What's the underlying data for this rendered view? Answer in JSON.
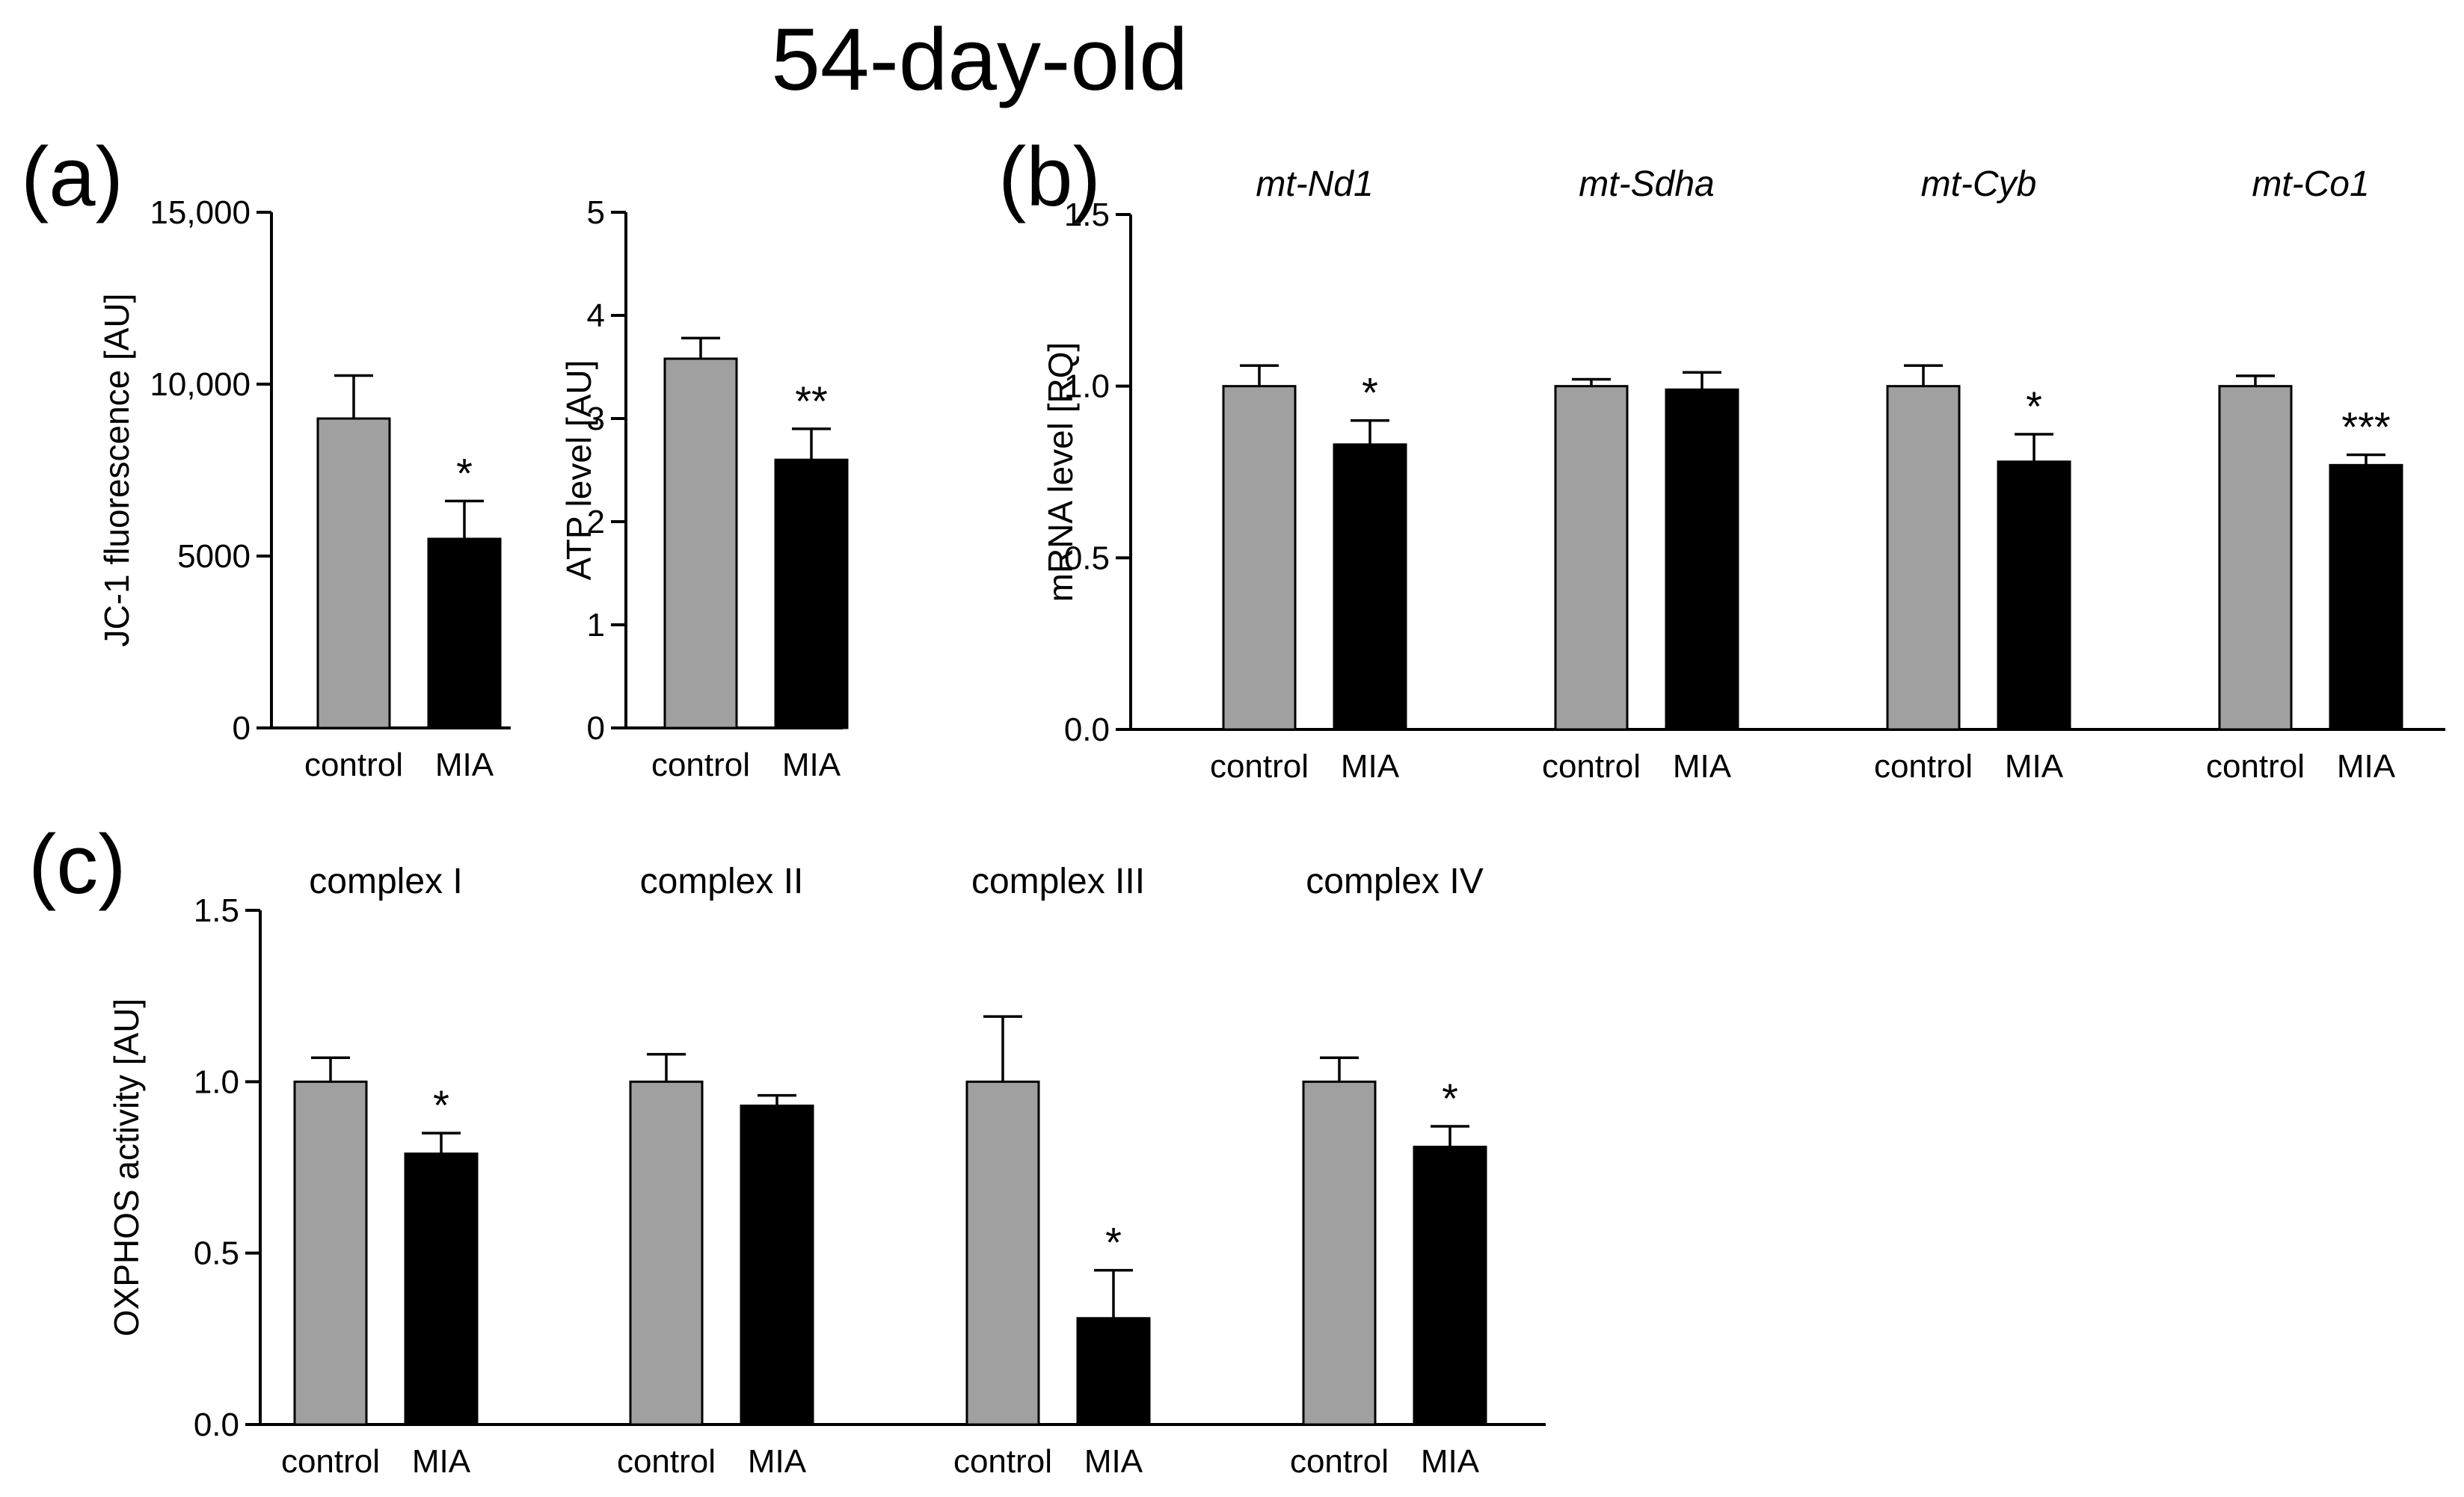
{
  "figure": {
    "title": "54-day-old",
    "panel_labels": [
      "(a)",
      "(b)",
      "(c)"
    ]
  },
  "colors": {
    "control": "#a0a0a0",
    "mia": "#000000",
    "axis": "#000000"
  },
  "chart_data": [
    {
      "id": "a1",
      "type": "bar",
      "ylabel": "JC-1 fluorescence [AU]",
      "ylim": [
        0,
        15000
      ],
      "yticks": [
        0,
        5000,
        10000,
        15000
      ],
      "ytick_labels": [
        "0",
        "5000",
        "10,000",
        "15,000"
      ],
      "groups": [
        {
          "subtitle": "",
          "bars": [
            {
              "label": "control",
              "value": 9000,
              "err": 1250,
              "star": ""
            },
            {
              "label": "MIA",
              "value": 5500,
              "err": 1100,
              "star": "*"
            }
          ]
        }
      ]
    },
    {
      "id": "a2",
      "type": "bar",
      "ylabel": "ATP level [AU]",
      "ylim": [
        0,
        5
      ],
      "yticks": [
        0,
        1,
        2,
        3,
        4,
        5
      ],
      "ytick_labels": [
        "0",
        "1",
        "2",
        "3",
        "4",
        "5"
      ],
      "groups": [
        {
          "subtitle": "",
          "bars": [
            {
              "label": "control",
              "value": 3.58,
              "err": 0.2,
              "star": ""
            },
            {
              "label": "MIA",
              "value": 2.6,
              "err": 0.3,
              "star": "**"
            }
          ]
        }
      ]
    },
    {
      "id": "b",
      "type": "bar",
      "ylabel": "mRNA level [RQ]",
      "ylim": [
        0,
        1.5
      ],
      "yticks": [
        0,
        0.5,
        1.0,
        1.5
      ],
      "ytick_labels": [
        "0.0",
        "0.5",
        "1.0",
        "1.5"
      ],
      "subtitle_italic": true,
      "groups": [
        {
          "subtitle": "mt-Nd1",
          "bars": [
            {
              "label": "control",
              "value": 1.0,
              "err": 0.06,
              "star": ""
            },
            {
              "label": "MIA",
              "value": 0.83,
              "err": 0.07,
              "star": "*"
            }
          ]
        },
        {
          "subtitle": "mt-Sdha",
          "bars": [
            {
              "label": "control",
              "value": 1.0,
              "err": 0.02,
              "star": ""
            },
            {
              "label": "MIA",
              "value": 0.99,
              "err": 0.05,
              "star": ""
            }
          ]
        },
        {
          "subtitle": "mt-Cyb",
          "bars": [
            {
              "label": "control",
              "value": 1.0,
              "err": 0.06,
              "star": ""
            },
            {
              "label": "MIA",
              "value": 0.78,
              "err": 0.08,
              "star": "*"
            }
          ]
        },
        {
          "subtitle": "mt-Co1",
          "bars": [
            {
              "label": "control",
              "value": 1.0,
              "err": 0.03,
              "star": ""
            },
            {
              "label": "MIA",
              "value": 0.77,
              "err": 0.03,
              "star": "***"
            }
          ]
        }
      ]
    },
    {
      "id": "c",
      "type": "bar",
      "ylabel": "OXPHOS activity [AU]",
      "ylim": [
        0,
        1.5
      ],
      "yticks": [
        0,
        0.5,
        1.0,
        1.5
      ],
      "ytick_labels": [
        "0.0",
        "0.5",
        "1.0",
        "1.5"
      ],
      "subtitle_italic": false,
      "groups": [
        {
          "subtitle": "complex I",
          "bars": [
            {
              "label": "control",
              "value": 1.0,
              "err": 0.07,
              "star": ""
            },
            {
              "label": "MIA",
              "value": 0.79,
              "err": 0.06,
              "star": "*"
            }
          ]
        },
        {
          "subtitle": "complex  II",
          "bars": [
            {
              "label": "control",
              "value": 1.0,
              "err": 0.08,
              "star": ""
            },
            {
              "label": "MIA",
              "value": 0.93,
              "err": 0.03,
              "star": ""
            }
          ]
        },
        {
          "subtitle": "complex III",
          "bars": [
            {
              "label": "control",
              "value": 1.0,
              "err": 0.19,
              "star": ""
            },
            {
              "label": "MIA",
              "value": 0.31,
              "err": 0.14,
              "star": "*"
            }
          ]
        },
        {
          "subtitle": "complex  IV",
          "bars": [
            {
              "label": "control",
              "value": 1.0,
              "err": 0.07,
              "star": ""
            },
            {
              "label": "MIA",
              "value": 0.81,
              "err": 0.06,
              "star": "*"
            }
          ]
        }
      ]
    }
  ]
}
